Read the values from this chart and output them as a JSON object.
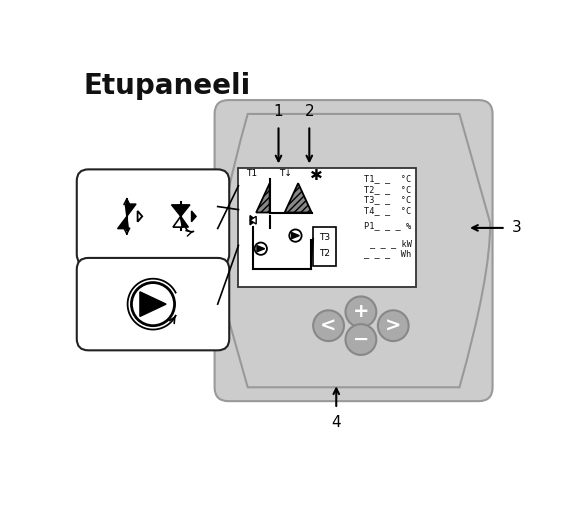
{
  "title": "Etupaneeli",
  "title_fontsize": 20,
  "bg_color": "#ffffff",
  "panel_color": "#cccccc",
  "button_color": "#aaaaaa",
  "label1": "1",
  "label2": "2",
  "label3": "3",
  "label4": "4",
  "display_texts_right": [
    "T1_ _  °C",
    "T2_ _  °C",
    "T3_ _  °C",
    "T4_ _  °C",
    "P1_ _ _ %",
    "_ _ _ kW",
    "_ _ _  Wh"
  ]
}
